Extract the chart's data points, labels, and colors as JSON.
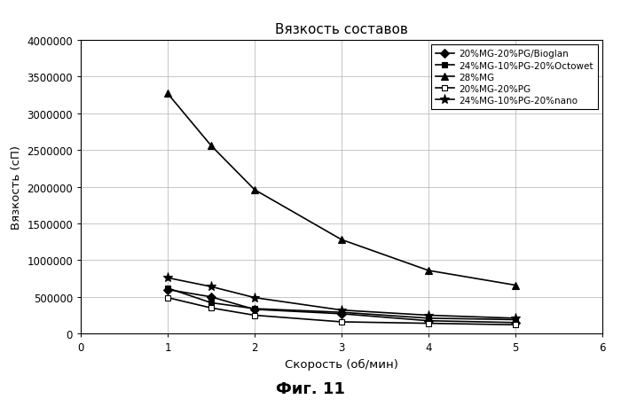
{
  "title": "Вязкость составов",
  "xlabel": "Скорость (об/мин)",
  "ylabel": "Вязкость (сП)",
  "caption": "Фиг. 11",
  "xlim": [
    0,
    6
  ],
  "ylim": [
    0,
    4000000
  ],
  "yticks": [
    0,
    500000,
    1000000,
    1500000,
    2000000,
    2500000,
    3000000,
    3500000,
    4000000
  ],
  "xticks": [
    0,
    1,
    2,
    3,
    4,
    5,
    6
  ],
  "series": [
    {
      "label": "20%MG-20%PG/Bioglan",
      "x": [
        1,
        1.5,
        2,
        3,
        4,
        5
      ],
      "y": [
        600000,
        500000,
        330000,
        270000,
        175000,
        150000
      ],
      "color": "#000000",
      "marker": "D",
      "markersize": 5,
      "linewidth": 1.2,
      "markerfacecolor": "#000000"
    },
    {
      "label": "24%MG-10%PG-20%Octowet",
      "x": [
        1,
        1.5,
        2,
        3,
        4,
        5
      ],
      "y": [
        620000,
        420000,
        340000,
        290000,
        210000,
        190000
      ],
      "color": "#000000",
      "marker": "s",
      "markersize": 5,
      "linewidth": 1.2,
      "markerfacecolor": "#000000"
    },
    {
      "label": "28%MG",
      "x": [
        1,
        1.5,
        2,
        3,
        4,
        5
      ],
      "y": [
        3270000,
        2560000,
        1960000,
        1280000,
        860000,
        660000
      ],
      "color": "#000000",
      "marker": "^",
      "markersize": 6,
      "linewidth": 1.2,
      "markerfacecolor": "#000000"
    },
    {
      "label": "20%MG-20%PG",
      "x": [
        1,
        1.5,
        2,
        3,
        4,
        5
      ],
      "y": [
        490000,
        350000,
        250000,
        160000,
        140000,
        120000
      ],
      "color": "#000000",
      "marker": "s",
      "markersize": 5,
      "linewidth": 1.2,
      "markerfacecolor": "white"
    },
    {
      "label": "24%MG-10%PG-20%nano",
      "x": [
        1,
        1.5,
        2,
        3,
        4,
        5
      ],
      "y": [
        760000,
        640000,
        490000,
        320000,
        250000,
        210000
      ],
      "color": "#000000",
      "marker": "*",
      "markersize": 8,
      "linewidth": 1.2,
      "markerfacecolor": "#000000"
    }
  ]
}
